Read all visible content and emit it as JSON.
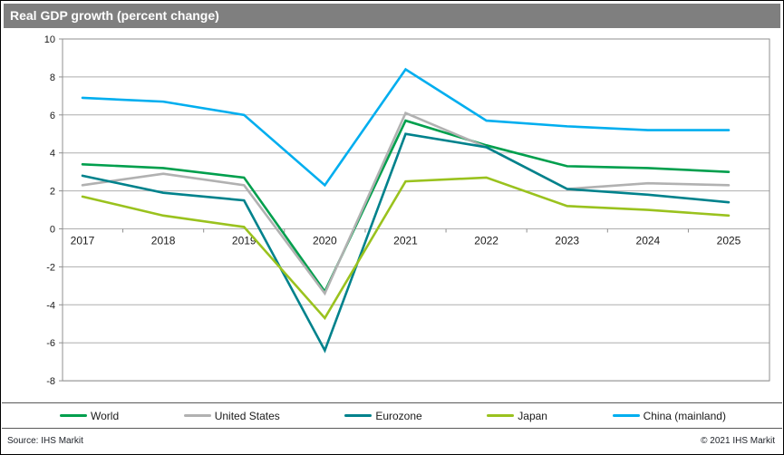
{
  "title": "Real GDP growth (percent change)",
  "footer": {
    "source": "Source: IHS Markit",
    "copyright": "© 2021  IHS Markit"
  },
  "colors": {
    "title_bg": "#7f7f7f",
    "title_fg": "#ffffff",
    "grid": "#aeaeae",
    "axis": "#8f8f8f",
    "tick_label": "#1a1a1a"
  },
  "chart_data": {
    "type": "line",
    "categories": [
      "2017",
      "2018",
      "2019",
      "2020",
      "2021",
      "2022",
      "2023",
      "2024",
      "2025"
    ],
    "series": [
      {
        "name": "World",
        "color": "#009F4D",
        "values": [
          3.4,
          3.2,
          2.7,
          -3.3,
          5.7,
          4.4,
          3.3,
          3.2,
          3.0
        ]
      },
      {
        "name": "United States",
        "color": "#B1B1B1",
        "values": [
          2.3,
          2.9,
          2.3,
          -3.4,
          6.1,
          4.3,
          2.1,
          2.4,
          2.3
        ]
      },
      {
        "name": "Eurozone",
        "color": "#00828C",
        "values": [
          2.8,
          1.9,
          1.5,
          -6.4,
          5.0,
          4.3,
          2.1,
          1.8,
          1.4
        ]
      },
      {
        "name": "Japan",
        "color": "#9AC21E",
        "values": [
          1.7,
          0.7,
          0.1,
          -4.7,
          2.5,
          2.7,
          1.2,
          1.0,
          0.7
        ]
      },
      {
        "name": "China (mainland)",
        "color": "#00AEEF",
        "values": [
          6.9,
          6.7,
          6.0,
          2.3,
          8.4,
          5.7,
          5.4,
          5.2,
          5.2
        ]
      }
    ],
    "ylim": [
      -8,
      10
    ],
    "ytick_step": 2,
    "yticks": [
      10,
      8,
      6,
      4,
      2,
      0,
      -2,
      -4,
      -6,
      -8
    ],
    "grid": true,
    "legend_position": "bottom",
    "xlabel": "",
    "ylabel": ""
  }
}
